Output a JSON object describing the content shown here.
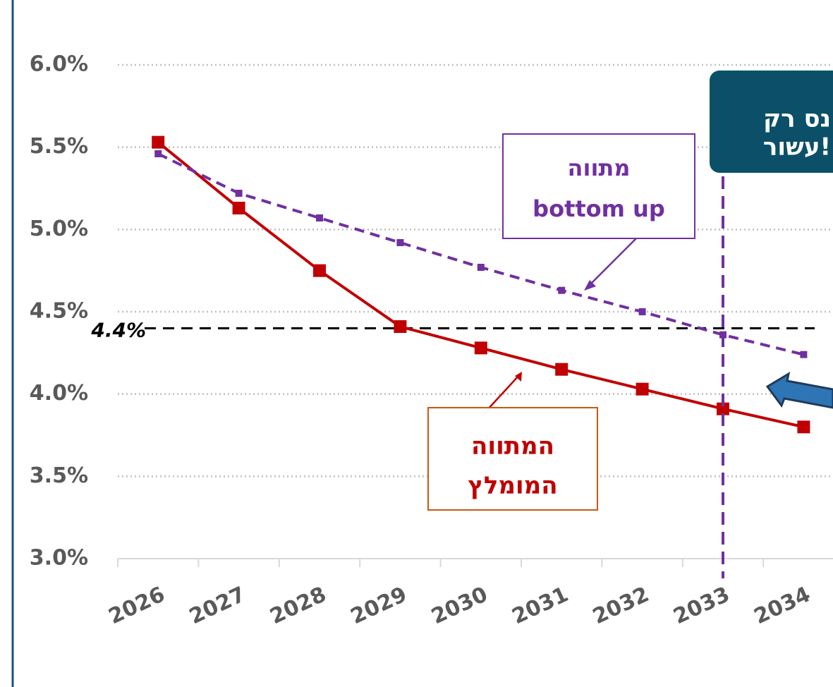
{
  "chart_data": {
    "type": "line",
    "categories": [
      "2026",
      "2027",
      "2028",
      "2029",
      "2030",
      "2031",
      "2032",
      "2033",
      "2034"
    ],
    "series": [
      {
        "name": [
          "המתווה",
          "המומלץ"
        ],
        "color": "#c00000",
        "dashed": false,
        "values": [
          5.53,
          5.13,
          4.75,
          4.41,
          4.28,
          4.15,
          4.03,
          3.91,
          3.8
        ]
      },
      {
        "name": [
          "מתווה",
          "bottom up"
        ],
        "color": "#7030a0",
        "dashed": true,
        "values": [
          5.46,
          5.22,
          5.07,
          4.92,
          4.77,
          4.63,
          4.5,
          4.36,
          4.24
        ]
      }
    ],
    "ylim": [
      3,
      6
    ],
    "yticks": [
      {
        "value": 3,
        "label": "3.0%"
      },
      {
        "value": 3.5,
        "label": "3.5%"
      },
      {
        "value": 4,
        "label": "4.0%"
      },
      {
        "value": 4.5,
        "label": "4.5%"
      },
      {
        "value": 5,
        "label": "5.0%"
      },
      {
        "value": 5.5,
        "label": "5.5%"
      },
      {
        "value": 6,
        "label": "6.0%"
      }
    ],
    "grid": true,
    "reference_line": {
      "value": 4.4,
      "label": "4.4%"
    },
    "vertical_marker": "2033",
    "callout": [
      "נס רק",
      "עשור!"
    ]
  }
}
